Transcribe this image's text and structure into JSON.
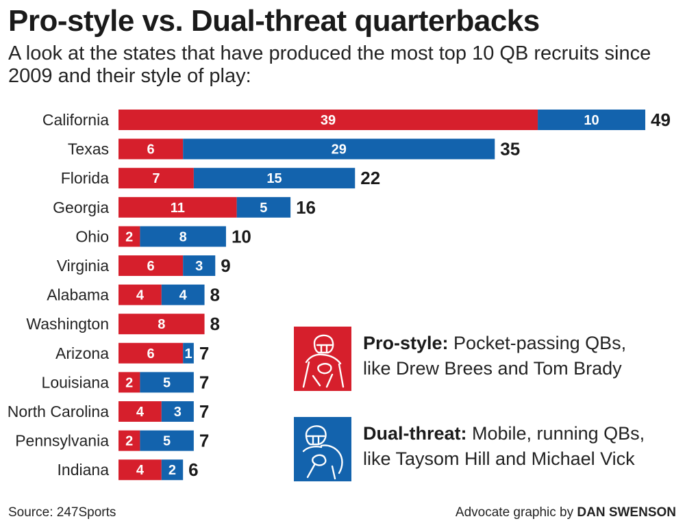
{
  "title": "Pro-style vs. Dual-threat quarterbacks",
  "subtitle": "A look at the states that have produced the most top 10 QB recruits since 2009 and their style of play:",
  "colors": {
    "pro_style": "#d61f2c",
    "dual_threat": "#1363ad",
    "text": "#1a1a1a"
  },
  "chart_data": {
    "type": "bar",
    "orientation": "horizontal",
    "stacked": true,
    "categories": [
      "California",
      "Texas",
      "Florida",
      "Georgia",
      "Ohio",
      "Virginia",
      "Alabama",
      "Washington",
      "Arizona",
      "Louisiana",
      "North Carolina",
      "Pennsylvania",
      "Indiana"
    ],
    "series": [
      {
        "name": "Pro-style",
        "values": [
          39,
          6,
          7,
          11,
          2,
          6,
          4,
          8,
          6,
          2,
          4,
          2,
          4
        ]
      },
      {
        "name": "Dual-threat",
        "values": [
          10,
          29,
          15,
          5,
          8,
          3,
          4,
          0,
          1,
          5,
          3,
          5,
          2
        ]
      }
    ],
    "totals": [
      49,
      35,
      22,
      16,
      10,
      9,
      8,
      8,
      7,
      7,
      7,
      7,
      6
    ],
    "title": "Pro-style vs. Dual-threat quarterbacks",
    "xlabel": "",
    "ylabel": "",
    "xlim": [
      0,
      49
    ],
    "grid": false
  },
  "legend": {
    "pro": {
      "label": "Pro-style:",
      "line1": " Pocket-passing QBs,",
      "line2": "like Drew Brees and Tom Brady",
      "icon": "football-player-icon"
    },
    "dual": {
      "label": "Dual-threat:",
      "line1": " Mobile, running QBs,",
      "line2": "like Taysom Hill and Michael Vick",
      "icon": "running-quarterback-icon"
    }
  },
  "source": "Source: 247Sports",
  "credit": {
    "prefix": "Advocate graphic by ",
    "author": "DAN SWENSON"
  }
}
